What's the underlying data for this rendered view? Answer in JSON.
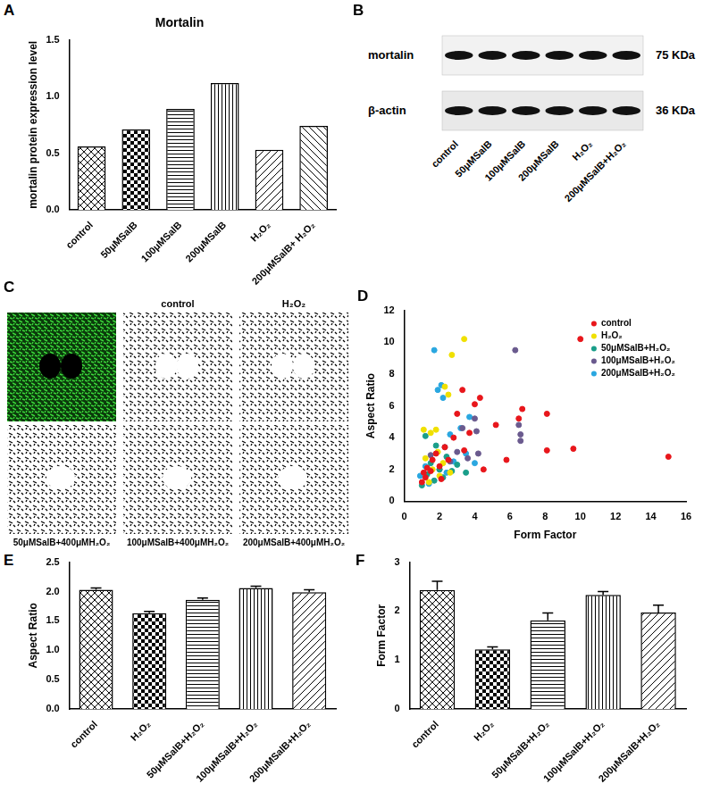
{
  "chart_data": [
    {
      "label": "A",
      "type": "bar",
      "title": "Mortalin",
      "y_label": "mortalin protein expression level",
      "categories": [
        "control",
        "50μMSalB",
        "100μMSalB",
        "200μMSalB",
        "H₂O₂",
        "200μMSalB+ H₂O₂"
      ],
      "values": [
        0.56,
        0.71,
        0.89,
        1.12,
        0.53,
        0.74
      ],
      "color": "#000000",
      "ylim": [
        0,
        1.5
      ],
      "yticks": [
        {
          "value": 0,
          "label": "0.0"
        },
        0.5,
        {
          "value": 1,
          "label": "1.0"
        },
        1.5
      ],
      "grid": false
    },
    {
      "label": "D",
      "type": "scatter",
      "x_label": "Form Factor",
      "y_label": "Aspect Ratio",
      "xlim": [
        0,
        16
      ],
      "xticks": [
        0,
        2,
        4,
        6,
        8,
        10,
        12,
        14,
        16
      ],
      "ylim": [
        0,
        12
      ],
      "yticks": [
        0,
        2,
        4,
        6,
        8,
        10,
        12
      ],
      "grid": false,
      "legend": "top-right",
      "series": [
        {
          "name": "control",
          "color": "#e8161b",
          "x": [
            1,
            1.1,
            1.2,
            1.3,
            1.5,
            1.6,
            1.8,
            2,
            2.1,
            2.3,
            2.5,
            2.8,
            3,
            3.3,
            3.4,
            3.7,
            4,
            4.3,
            4.5,
            5.2,
            5.8,
            6.5,
            6.7,
            8.1,
            8.1,
            9.6,
            10,
            15
          ],
          "values": [
            1.2,
            1.8,
            1.5,
            2.1,
            1.9,
            2.6,
            3.0,
            2.2,
            1.4,
            3.4,
            2.6,
            4.0,
            5.5,
            7.0,
            3.2,
            4.3,
            6.1,
            6.5,
            2.0,
            4.8,
            2.6,
            5.2,
            5.8,
            3.2,
            5.5,
            3.3,
            10.2,
            2.8
          ]
        },
        {
          "name": "H₂O₂",
          "color": "#f0e000",
          "x": [
            1.1,
            1.2,
            1.5,
            1.4,
            1.6,
            1.8,
            1.9,
            2.0,
            2.3,
            2.5,
            2.7,
            3.4,
            2.2,
            2.6
          ],
          "values": [
            4.5,
            2.7,
            4.3,
            1.2,
            2.0,
            4.5,
            3.1,
            1.6,
            7.2,
            6.7,
            9.2,
            10.2,
            2.4,
            1.8
          ]
        },
        {
          "name": "50μMSalB+H₂O₂",
          "color": "#1a9e8a",
          "x": [
            1.0,
            1.2,
            1.3,
            1.5,
            1.7,
            1.8,
            2.0,
            2.2,
            2.4,
            2.7,
            3.0,
            3.5
          ],
          "values": [
            1.0,
            4.1,
            1.7,
            2.4,
            1.3,
            3.5,
            2.0,
            1.5,
            2.8,
            1.9,
            2.3,
            1.8
          ]
        },
        {
          "name": "100μMSalB+H₂O₂",
          "color": "#6a5a8e",
          "x": [
            1.5,
            2.0,
            2.3,
            2.6,
            3.0,
            3.3,
            3.6,
            4.0,
            4.1,
            4.2,
            6.3,
            6.5,
            6.6,
            6.6
          ],
          "values": [
            2.9,
            2.0,
            3.4,
            2.5,
            3.1,
            4.6,
            2.7,
            5.2,
            4.4,
            3.0,
            9.5,
            4.8,
            4.2,
            3.8
          ]
        },
        {
          "name": "200μMSalB+H₂O₂",
          "color": "#2aa7e0",
          "x": [
            0.9,
            1.2,
            1.4,
            1.7,
            1.9,
            2.1,
            2.2,
            2.4,
            2.6,
            2.8,
            3.2,
            3.5,
            3.7,
            4.0
          ],
          "values": [
            1.6,
            2.2,
            1.1,
            9.5,
            7.0,
            7.3,
            6.5,
            1.8,
            4.2,
            2.5,
            4.6,
            3.0,
            5.3,
            2.4
          ]
        }
      ]
    },
    {
      "label": "E",
      "type": "bar",
      "y_label": "Aspect Ratio",
      "categories": [
        "control",
        "H₂O₂",
        "50μMSalB+H₂O₂",
        "100μMSalB+H₂O₂",
        "200μMSalB+H₂O₂"
      ],
      "values": [
        2.03,
        1.63,
        1.86,
        2.06,
        1.99
      ],
      "errors": [
        0.03,
        0.03,
        0.03,
        0.03,
        0.04
      ],
      "color": "#000000",
      "ylim": [
        0,
        2.5
      ],
      "yticks": [
        {
          "value": 0,
          "label": "0.0"
        },
        0.5,
        {
          "value": 1,
          "label": "1.0"
        },
        1.5,
        {
          "value": 2,
          "label": "2.0"
        },
        2.5
      ],
      "grid": false
    },
    {
      "label": "F",
      "type": "bar",
      "y_label": "Form Factor",
      "categories": [
        "control",
        "H₂O₂",
        "50μMSalB+H₂O₂",
        "100μMSalB+H₂O₂",
        "200μMSalB+H₂O₂"
      ],
      "values": [
        2.43,
        1.22,
        1.81,
        2.33,
        1.97
      ],
      "errors": [
        0.18,
        0.05,
        0.15,
        0.07,
        0.15
      ],
      "color": "#000000",
      "ylim": [
        0,
        3
      ],
      "yticks": [
        0,
        1,
        2,
        3
      ],
      "grid": false
    }
  ],
  "blot": {
    "label": "B",
    "lanes": [
      "control",
      "50μMSalB",
      "100μMSalB",
      "200μMSalB",
      "H₂O₂",
      "200μMSalB+H₂O₂"
    ],
    "rows": [
      {
        "name": "mortalin",
        "size": "75 KDa"
      },
      {
        "name": "β-actin",
        "size": "36 KDa"
      }
    ]
  },
  "images": {
    "label": "C",
    "top": [
      "control",
      "H₂O₂"
    ],
    "bottom": [
      "50μMSalB+400μMH₂O₂",
      "100μMSalB+400μMH₂O₂",
      "200μMSalB+400μMH₂O₂"
    ]
  }
}
